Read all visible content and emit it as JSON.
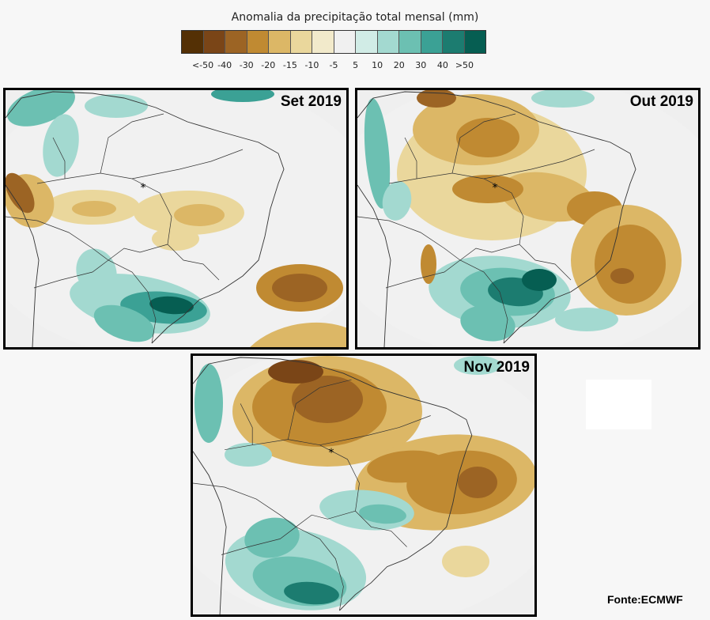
{
  "legend": {
    "title": "Anomalia da precipitação total mensal (mm)",
    "labels": [
      "<-50",
      "-40",
      "-30",
      "-20",
      "-15",
      "-10",
      "-5",
      "5",
      "10",
      "20",
      "30",
      "40",
      ">50"
    ],
    "colors": [
      "#543005",
      "#7a4517",
      "#9c6424",
      "#c08a32",
      "#dcb766",
      "#ead79c",
      "#f2eacb",
      "#f0f0f0",
      "#d1ece6",
      "#a3d9d0",
      "#6cc0b2",
      "#3ba195",
      "#1c7c70",
      "#065e52"
    ]
  },
  "maps": [
    {
      "title": "Set 2019"
    },
    {
      "title": "Out 2019"
    },
    {
      "title": "Nov 2019"
    }
  ],
  "source": "Fonte:ECMWF"
}
